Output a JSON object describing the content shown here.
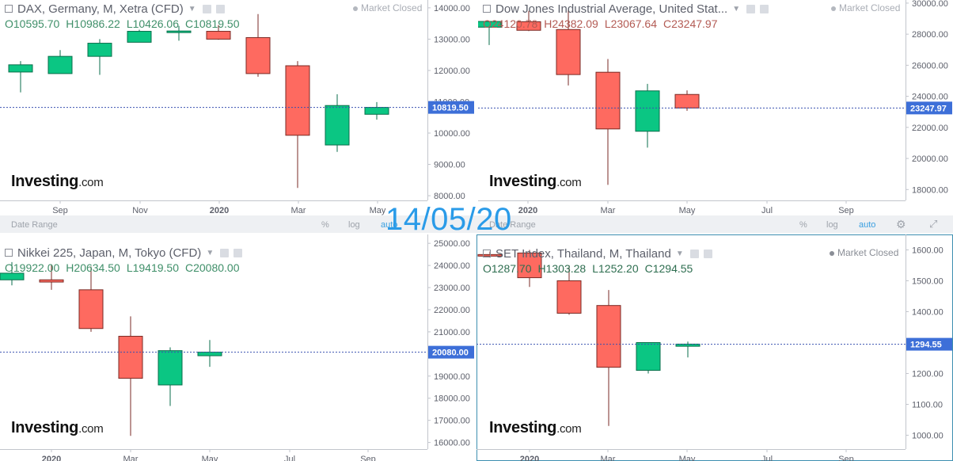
{
  "colors": {
    "up": "#0bc683",
    "down": "#fe6a60",
    "wick_up": "#0a6e4b",
    "wick_down": "#7a2a24",
    "axis_text": "#5d606b",
    "price_line": "#3a52b0",
    "price_tag": "#3d6fd8",
    "accent": "#3a9fe0"
  },
  "overlay_date": "14/05/20",
  "logo": {
    "brand": "Investing",
    "suffix": ".com"
  },
  "toolbar": {
    "date_range": "Date Range",
    "percent": "%",
    "log": "log",
    "auto": "auto",
    "settings_icon": "gear-icon"
  },
  "charts": [
    {
      "id": "dax",
      "title": "DAX, Germany, M, Xetra (CFD)",
      "market_status": "Market Closed",
      "ohlc": {
        "o": "O10595.70",
        "h": "H10986.22",
        "l": "L10426.06",
        "c": "C10819.50"
      },
      "last_price": "10819.50",
      "show_status": true
    },
    {
      "id": "dji",
      "title": "Dow Jones Industrial Average, United Stat...",
      "market_status": "Market Closed",
      "ohlc": {
        "o": "O24120.78",
        "h": "H24382.09",
        "l": "L23067.64",
        "c": "C23247.97"
      },
      "last_price": "23247.97",
      "show_status": true
    },
    {
      "id": "nikkei",
      "title": "Nikkei 225, Japan, M, Tokyo (CFD)",
      "market_status": "",
      "ohlc": {
        "o": "O19922.00",
        "h": "H20634.50",
        "l": "L19419.50",
        "c": "C20080.00"
      },
      "last_price": "20080.00",
      "show_status": false
    },
    {
      "id": "set",
      "title": "SET Index, Thailand, M, Thailand",
      "market_status": "Market Closed",
      "ohlc": {
        "o": "O1287.70",
        "h": "H1303.28",
        "l": "L1252.20",
        "c": "C1294.55"
      },
      "last_price": "1294.55",
      "show_status": true
    }
  ],
  "chart_data": [
    {
      "type": "candlestick",
      "title": "DAX, Germany, M, Xetra (CFD)",
      "y_ticks": [
        8000,
        9000,
        10000,
        11000,
        12000,
        13000,
        14000
      ],
      "ylim": [
        7850,
        14250
      ],
      "x_ticks": [
        "Sep",
        "Nov",
        "2020",
        "Mar",
        "May"
      ],
      "last_price": 10819.5,
      "candles": [
        {
          "o": 11950,
          "h": 12300,
          "l": 11300,
          "c": 12180
        },
        {
          "o": 11900,
          "h": 12650,
          "l": 11900,
          "c": 12450
        },
        {
          "o": 12450,
          "h": 13000,
          "l": 11860,
          "c": 12870
        },
        {
          "o": 12900,
          "h": 13300,
          "l": 12900,
          "c": 13250
        },
        {
          "o": 13240,
          "h": 13420,
          "l": 12950,
          "c": 13260
        },
        {
          "o": 13250,
          "h": 13450,
          "l": 12980,
          "c": 13000
        },
        {
          "o": 13050,
          "h": 13800,
          "l": 11800,
          "c": 11900
        },
        {
          "o": 12150,
          "h": 12300,
          "l": 8250,
          "c": 9930
        },
        {
          "o": 9620,
          "h": 11240,
          "l": 9400,
          "c": 10880
        },
        {
          "o": 10600,
          "h": 10990,
          "l": 10430,
          "c": 10820
        }
      ]
    },
    {
      "type": "candlestick",
      "title": "Dow Jones Industrial Average",
      "y_ticks": [
        18000,
        20000,
        22000,
        24000,
        26000,
        28000,
        30000
      ],
      "ylim": [
        17300,
        30200
      ],
      "x_ticks": [
        "2020",
        "Mar",
        "May",
        "Jul",
        "Sep"
      ],
      "last_price": 23247.97,
      "candles": [
        {
          "o": 28450,
          "h": 28800,
          "l": 27300,
          "c": 28820
        },
        {
          "o": 28800,
          "h": 29500,
          "l": 28200,
          "c": 28250
        },
        {
          "o": 28300,
          "h": 29600,
          "l": 24700,
          "c": 25400
        },
        {
          "o": 25550,
          "h": 26400,
          "l": 18300,
          "c": 21900
        },
        {
          "o": 21750,
          "h": 24800,
          "l": 20700,
          "c": 24350
        },
        {
          "o": 24120,
          "h": 24380,
          "l": 23070,
          "c": 23250
        }
      ]
    },
    {
      "type": "candlestick",
      "title": "Nikkei 225, Japan, M, Tokyo (CFD)",
      "y_ticks": [
        16000,
        17000,
        18000,
        19000,
        20000,
        21000,
        22000,
        23000,
        24000,
        25000
      ],
      "ylim": [
        15700,
        25400
      ],
      "x_ticks": [
        "2020",
        "Mar",
        "May",
        "Jul",
        "Sep"
      ],
      "last_price": 20080.0,
      "candles": [
        {
          "o": 23350,
          "h": 24150,
          "l": 23100,
          "c": 23650
        },
        {
          "o": 23350,
          "h": 24050,
          "l": 22900,
          "c": 23250
        },
        {
          "o": 22900,
          "h": 23950,
          "l": 21000,
          "c": 21150
        },
        {
          "o": 20800,
          "h": 21700,
          "l": 16300,
          "c": 18900
        },
        {
          "o": 18600,
          "h": 20300,
          "l": 17650,
          "c": 20150
        },
        {
          "o": 19920,
          "h": 20630,
          "l": 19420,
          "c": 20080
        }
      ]
    },
    {
      "type": "candlestick",
      "title": "SET Index, Thailand, M, Thailand",
      "y_ticks": [
        1000,
        1100,
        1200,
        1300,
        1400,
        1500,
        1600
      ],
      "ylim": [
        955,
        1650
      ],
      "x_ticks": [
        "2020",
        "Mar",
        "May",
        "Jul",
        "Sep"
      ],
      "last_price": 1294.55,
      "candles": [
        {
          "o": 1585,
          "h": 1595,
          "l": 1575,
          "c": 1580
        },
        {
          "o": 1590,
          "h": 1600,
          "l": 1480,
          "c": 1510
        },
        {
          "o": 1500,
          "h": 1550,
          "l": 1390,
          "c": 1395
        },
        {
          "o": 1420,
          "h": 1470,
          "l": 1030,
          "c": 1220
        },
        {
          "o": 1210,
          "h": 1300,
          "l": 1200,
          "c": 1300
        },
        {
          "o": 1288,
          "h": 1303,
          "l": 1252,
          "c": 1295
        }
      ]
    }
  ]
}
